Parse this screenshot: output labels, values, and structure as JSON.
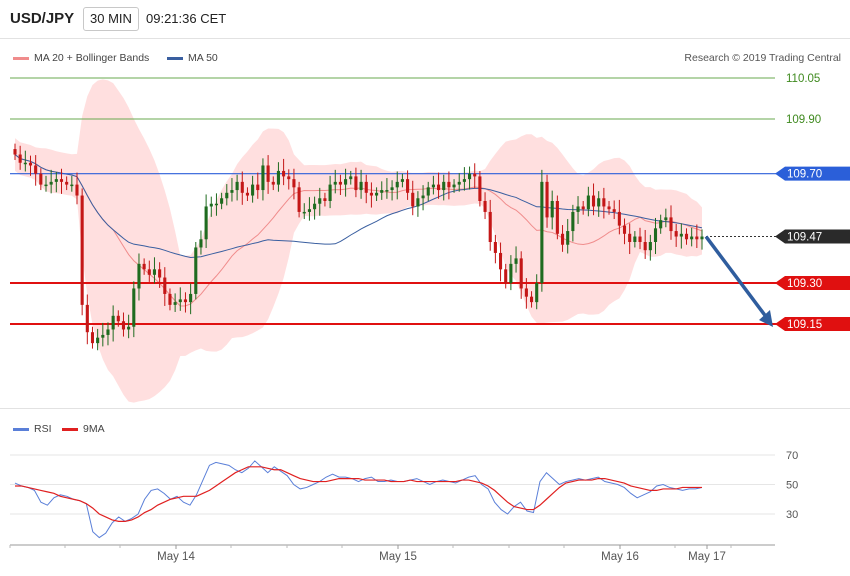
{
  "header": {
    "symbol": "USD/JPY",
    "timeframe": "30 MIN",
    "time": "09:21:36 CET"
  },
  "legend_top": [
    {
      "label": "MA 20 + Bollinger Bands",
      "color": "#f08c8c"
    },
    {
      "label": "MA 50",
      "color": "#3a5fa0"
    }
  ],
  "legend_bottom": [
    {
      "label": "RSI",
      "color": "#5a7fd8"
    },
    {
      "label": "9MA",
      "color": "#e02020"
    }
  ],
  "copyright": "Research © 2019 Trading Central",
  "colors": {
    "bull": "#1f6b1f",
    "bear": "#c41717",
    "band": "#ffd9d9",
    "grid_green": "#6aa84f",
    "level_blue": "#2b5fd9",
    "level_red": "#e01010"
  },
  "chart_data": [
    {
      "type": "candlestick",
      "title": "USD/JPY",
      "interval": "30 MIN",
      "ylim": [
        108.75,
        110.15
      ],
      "price_levels": [
        {
          "value": 110.05,
          "label": "110.05",
          "style": "green-line"
        },
        {
          "value": 109.9,
          "label": "109.90",
          "style": "green-line"
        },
        {
          "value": 109.7,
          "label": "109.70",
          "style": "blue-tag"
        },
        {
          "value": 109.47,
          "label": "109.47",
          "style": "current-dark-tag"
        },
        {
          "value": 109.3,
          "label": "109.30",
          "style": "red-tag"
        },
        {
          "value": 109.15,
          "label": "109.15",
          "style": "red-tag"
        }
      ],
      "x_labels": [
        "May 14",
        "May 15",
        "May 16",
        "May 17"
      ],
      "closes": [
        109.77,
        109.74,
        109.74,
        109.73,
        109.7,
        109.66,
        109.66,
        109.67,
        109.68,
        109.67,
        109.66,
        109.66,
        109.62,
        109.22,
        109.12,
        109.08,
        109.1,
        109.11,
        109.13,
        109.18,
        109.16,
        109.13,
        109.14,
        109.28,
        109.37,
        109.35,
        109.33,
        109.35,
        109.32,
        109.26,
        109.22,
        109.23,
        109.24,
        109.23,
        109.26,
        109.43,
        109.46,
        109.58,
        109.59,
        109.59,
        109.61,
        109.63,
        109.64,
        109.67,
        109.63,
        109.62,
        109.66,
        109.64,
        109.73,
        109.67,
        109.66,
        109.71,
        109.69,
        109.68,
        109.65,
        109.56,
        109.56,
        109.57,
        109.59,
        109.61,
        109.6,
        109.66,
        109.67,
        109.66,
        109.68,
        109.69,
        109.64,
        109.67,
        109.63,
        109.62,
        109.63,
        109.64,
        109.64,
        109.65,
        109.67,
        109.68,
        109.63,
        109.58,
        109.61,
        109.62,
        109.65,
        109.66,
        109.64,
        109.67,
        109.65,
        109.66,
        109.67,
        109.68,
        109.7,
        109.69,
        109.6,
        109.56,
        109.45,
        109.41,
        109.35,
        109.3,
        109.37,
        109.39,
        109.28,
        109.25,
        109.23,
        109.3,
        109.67,
        109.54,
        109.6,
        109.48,
        109.44,
        109.49,
        109.56,
        109.58,
        109.57,
        109.62,
        109.58,
        109.61,
        109.58,
        109.57,
        109.56,
        109.51,
        109.48,
        109.45,
        109.47,
        109.45,
        109.42,
        109.45,
        109.5,
        109.53,
        109.54,
        109.49,
        109.47,
        109.48,
        109.46,
        109.47,
        109.46,
        109.47
      ],
      "rsi": {
        "ylim": [
          10,
          85
        ],
        "ticks": [
          70,
          50,
          30
        ],
        "rsi_values": [
          51,
          49,
          48,
          46,
          38,
          36,
          41,
          43,
          42,
          40,
          39,
          37,
          18,
          14,
          17,
          24,
          28,
          25,
          27,
          30,
          40,
          46,
          47,
          44,
          40,
          42,
          38,
          36,
          43,
          53,
          63,
          65,
          64,
          63,
          60,
          58,
          61,
          66,
          62,
          58,
          62,
          59,
          56,
          50,
          47,
          48,
          50,
          52,
          55,
          57,
          55,
          55,
          54,
          52,
          54,
          55,
          52,
          52,
          53,
          52,
          52,
          53,
          54,
          52,
          50,
          52,
          53,
          52,
          51,
          53,
          55,
          56,
          50,
          47,
          38,
          33,
          30,
          35,
          38,
          32,
          31,
          52,
          58,
          54,
          50,
          52,
          53,
          54,
          53,
          54,
          55,
          52,
          51,
          50,
          48,
          44,
          41,
          43,
          45,
          49,
          50,
          48,
          47,
          46,
          47,
          47,
          48
        ],
        "ma9_values": [
          49,
          49,
          48,
          47,
          46,
          45,
          44,
          42,
          41,
          40,
          39,
          37,
          34,
          30,
          28,
          26,
          25,
          25,
          26,
          28,
          31,
          33,
          36,
          38,
          40,
          41,
          42,
          42,
          42,
          44,
          46,
          49,
          52,
          55,
          58,
          60,
          62,
          62,
          62,
          61,
          60,
          60,
          58,
          56,
          54,
          53,
          52,
          52,
          52,
          53,
          54,
          54,
          54,
          54,
          53,
          53,
          53,
          53,
          52,
          52,
          52,
          53,
          52,
          52,
          52,
          52,
          52,
          52,
          52,
          53,
          53,
          52,
          51,
          49,
          46,
          42,
          38,
          35,
          34,
          33,
          33,
          36,
          40,
          44,
          48,
          51,
          52,
          53,
          53,
          53,
          54,
          54,
          53,
          52,
          51,
          49,
          48,
          47,
          46,
          46,
          47,
          47,
          47,
          48,
          48,
          48,
          48
        ]
      }
    }
  ]
}
